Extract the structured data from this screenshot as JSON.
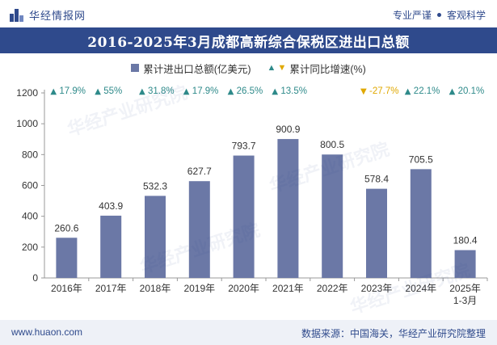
{
  "header": {
    "brand": "华经情报网",
    "slogan_left": "专业严谨",
    "slogan_right": "客观科学"
  },
  "title": "2016-2025年3月成都高新综合保税区进出口总额",
  "legend": {
    "bar_label": "累计进出口总额(亿美元)",
    "line_label": "累计同比增速(%)"
  },
  "footer": {
    "site": "www.huaon.com",
    "source": "数据来源：中国海关，华经产业研究院整理"
  },
  "watermark": "华经产业研究院",
  "colors": {
    "bar": "#6b78a6",
    "up": "#2e8a8a",
    "down": "#e0a800",
    "brand": "#2f4a8c"
  },
  "chart_data": {
    "type": "bar",
    "categories": [
      "2016年",
      "2017年",
      "2018年",
      "2019年",
      "2020年",
      "2021年",
      "2022年",
      "2023年",
      "2024年",
      "2025年\n1-3月"
    ],
    "category_lines": [
      [
        "2016年"
      ],
      [
        "2017年"
      ],
      [
        "2018年"
      ],
      [
        "2019年"
      ],
      [
        "2020年"
      ],
      [
        "2021年"
      ],
      [
        "2022年"
      ],
      [
        "2023年"
      ],
      [
        "2024年"
      ],
      [
        "2025年",
        "1-3月"
      ]
    ],
    "series": [
      {
        "name": "累计进出口总额(亿美元)",
        "values": [
          260.6,
          403.9,
          532.3,
          627.7,
          793.7,
          900.9,
          800.5,
          578.4,
          705.5,
          180.4
        ]
      }
    ],
    "value_labels": [
      "260.6",
      "403.9",
      "532.3",
      "627.7",
      "793.7",
      "900.9",
      "800.5",
      "578.4",
      "705.5",
      "180.4"
    ],
    "growth": [
      {
        "label": "17.9%",
        "dir": "up"
      },
      {
        "label": "55%",
        "dir": "up"
      },
      {
        "label": "31.8%",
        "dir": "up"
      },
      {
        "label": "17.9%",
        "dir": "up"
      },
      {
        "label": "26.5%",
        "dir": "up"
      },
      {
        "label": "13.5%",
        "dir": "up"
      },
      {
        "label": "",
        "dir": "none"
      },
      {
        "label": "-27.7%",
        "dir": "down"
      },
      {
        "label": "22.1%",
        "dir": "up"
      },
      {
        "label": "20.1%",
        "dir": "up"
      }
    ],
    "yticks": [
      0,
      200,
      400,
      600,
      800,
      1000,
      1200
    ],
    "ylim": [
      0,
      1200
    ],
    "grid": false,
    "legend_position": "top"
  }
}
